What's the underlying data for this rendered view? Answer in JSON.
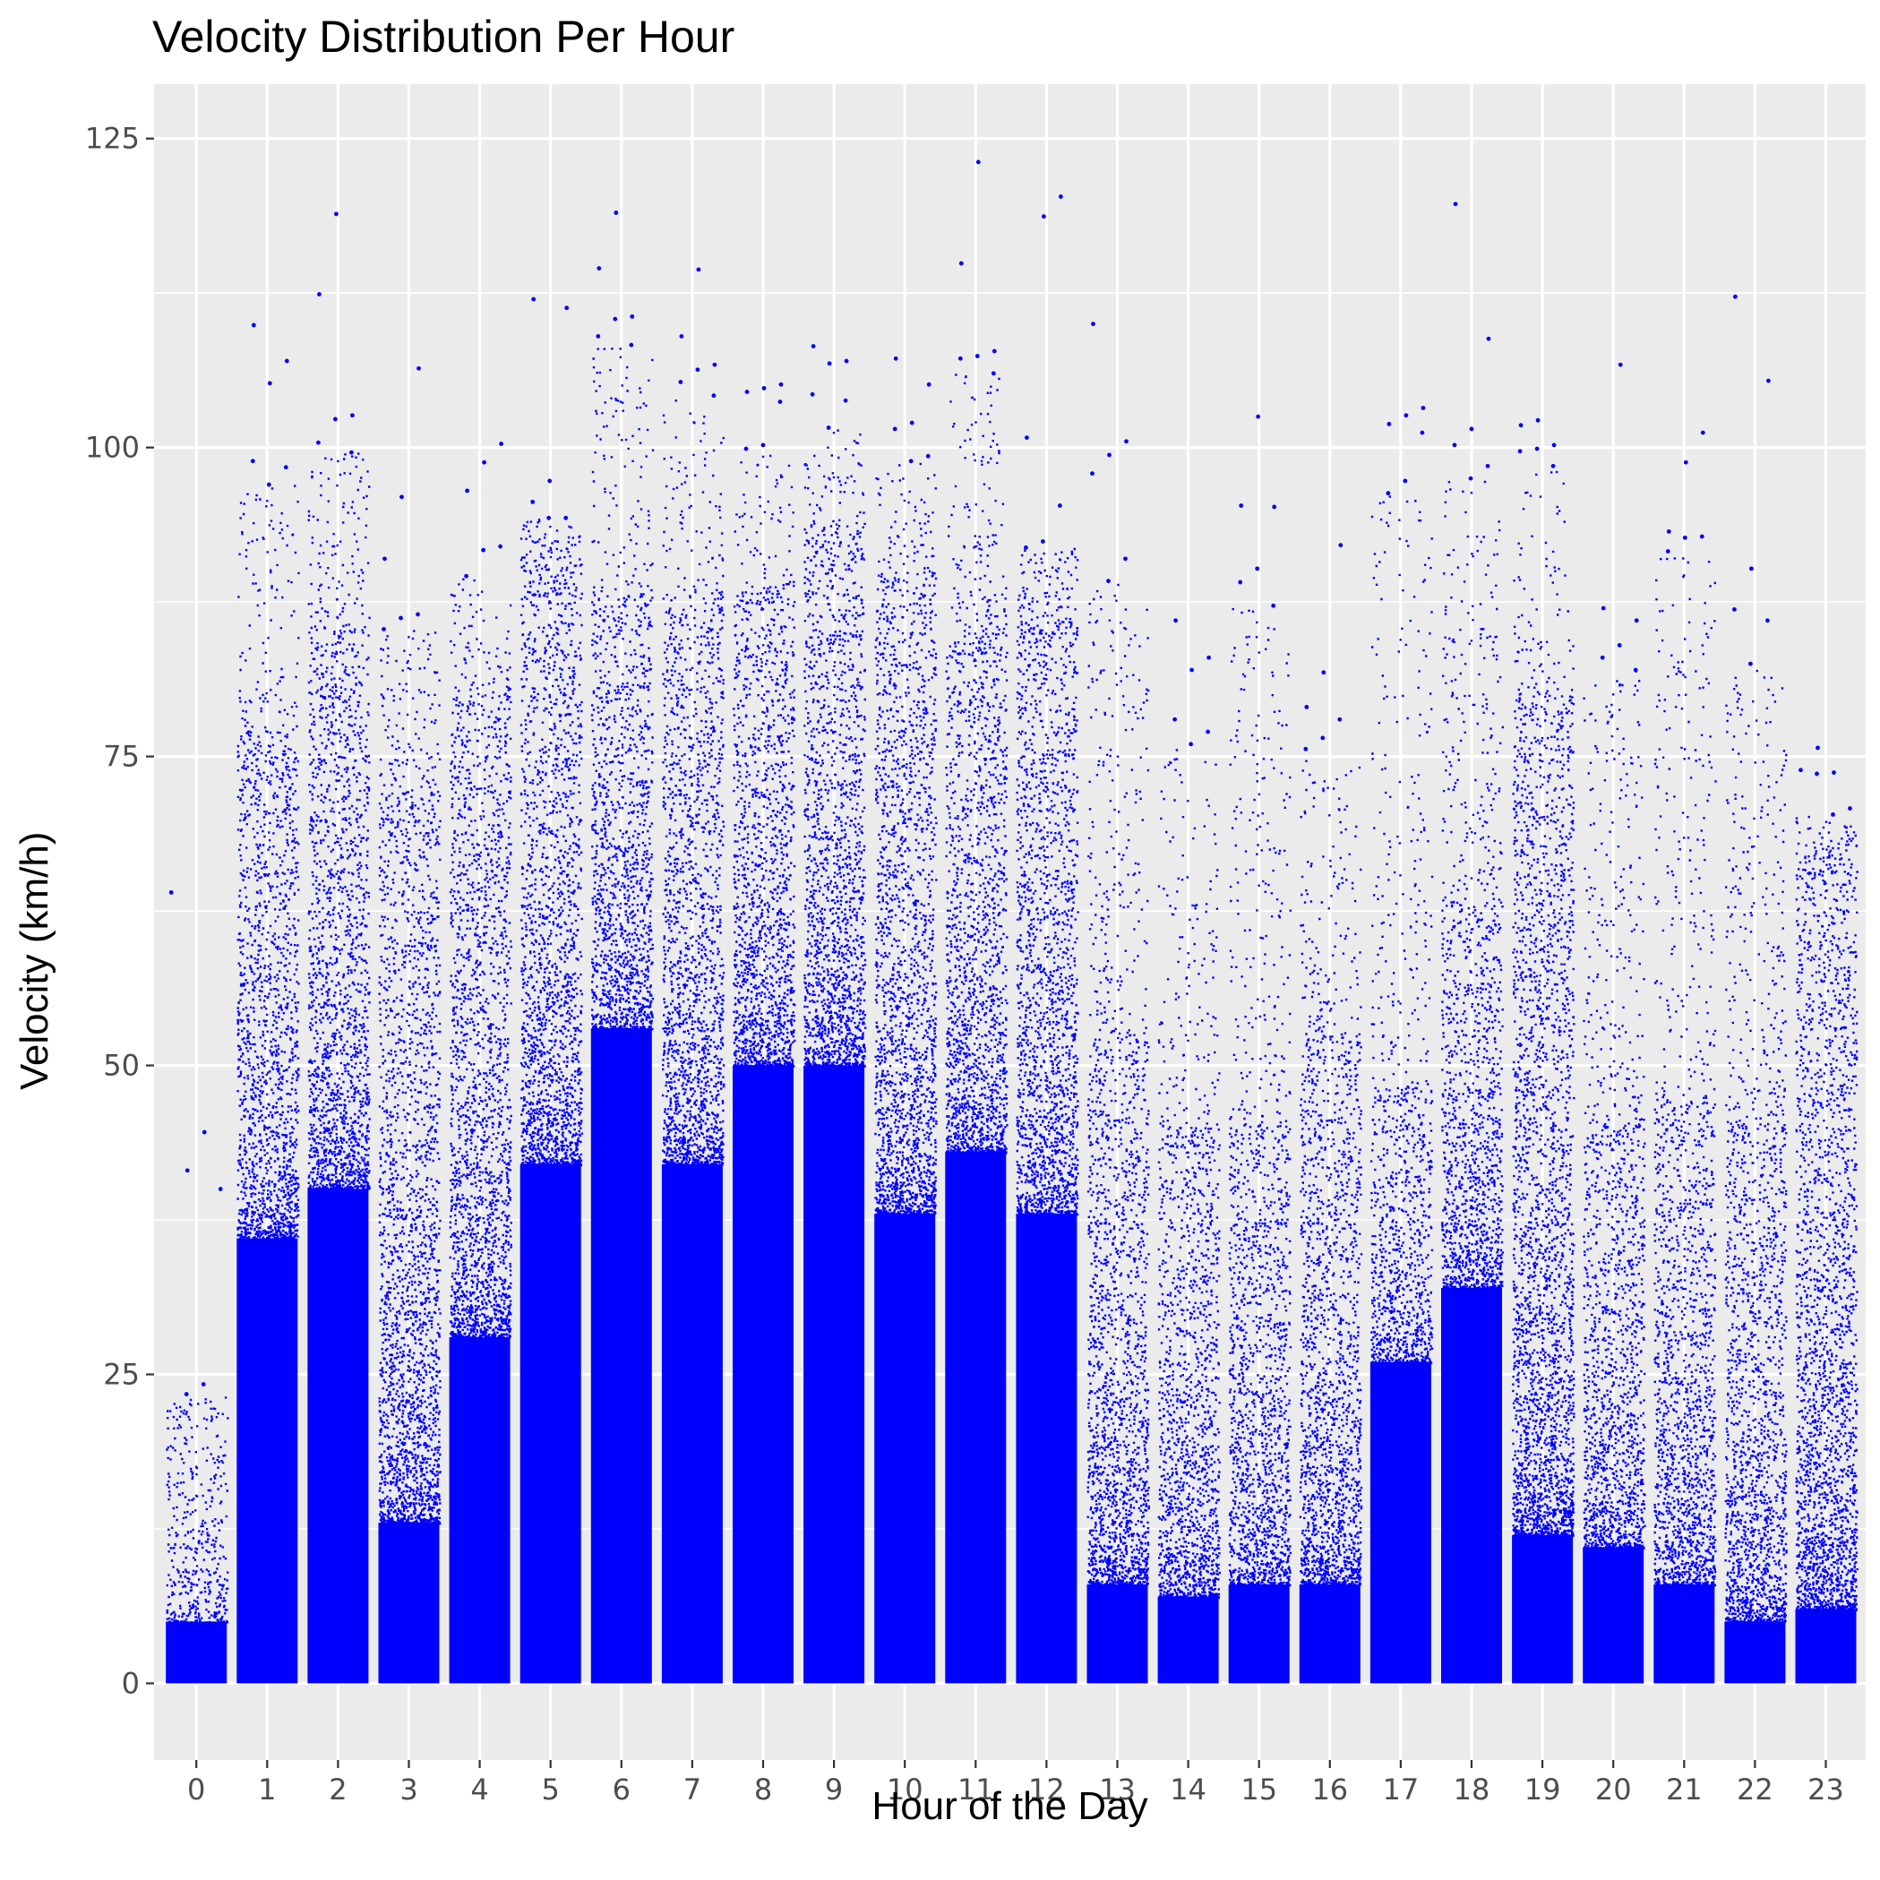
{
  "chart_data": {
    "type": "scatter",
    "title": "Velocity Distribution Per Hour",
    "xlabel": "Hour of the Day",
    "ylabel": "Velocity (km/h)",
    "categories": [
      "0",
      "1",
      "2",
      "3",
      "4",
      "5",
      "6",
      "7",
      "8",
      "9",
      "10",
      "11",
      "12",
      "13",
      "14",
      "15",
      "16",
      "17",
      "18",
      "19",
      "20",
      "21",
      "22",
      "23"
    ],
    "yticks": [
      0,
      25,
      50,
      75,
      100,
      125
    ],
    "ylim": [
      -6.2,
      129.4
    ],
    "grid": true,
    "legend": "none",
    "point_color": "#0000ff",
    "panel_color": "#ebebeb",
    "grid_color": "#ffffff",
    "series": [
      {
        "hour": 0,
        "dense_max": 5,
        "mid_max": 11,
        "top_outliers": [
          64,
          44.6,
          41.5,
          40,
          24.2,
          23.4
        ]
      },
      {
        "hour": 1,
        "dense_max": 36,
        "mid_max": 77,
        "top_outliers": [
          109.9,
          107,
          105.2,
          98.9,
          98.4,
          97
        ]
      },
      {
        "hour": 2,
        "dense_max": 40,
        "mid_max": 85,
        "top_outliers": [
          118.9,
          112.4,
          102.6,
          102.3,
          100.4,
          99.6
        ]
      },
      {
        "hour": 3,
        "dense_max": 13,
        "mid_max": 72,
        "top_outliers": [
          106.4,
          96,
          91,
          86.5,
          86.2,
          85.3
        ]
      },
      {
        "hour": 4,
        "dense_max": 28,
        "mid_max": 80,
        "top_outliers": [
          100.3,
          98.8,
          96.5,
          92,
          91.7,
          89.6
        ]
      },
      {
        "hour": 5,
        "dense_max": 42,
        "mid_max": 90,
        "top_outliers": [
          112,
          111.3,
          97.3,
          95.6,
          94.3,
          94.3
        ]
      },
      {
        "hour": 6,
        "dense_max": 53,
        "mid_max": 88,
        "top_outliers": [
          119,
          114.5,
          110.6,
          110.4,
          109,
          108.3
        ]
      },
      {
        "hour": 7,
        "dense_max": 42,
        "mid_max": 87,
        "top_outliers": [
          114.4,
          109,
          106.7,
          106.3,
          105.3,
          104.2
        ]
      },
      {
        "hour": 8,
        "dense_max": 50,
        "mid_max": 89,
        "top_outliers": [
          105.1,
          104.8,
          104.5,
          103.7,
          100.2,
          99.9
        ]
      },
      {
        "hour": 9,
        "dense_max": 50,
        "mid_max": 94,
        "top_outliers": [
          108.2,
          107,
          106.8,
          104.3,
          103.8,
          101.6
        ]
      },
      {
        "hour": 10,
        "dense_max": 38,
        "mid_max": 90,
        "top_outliers": [
          107.2,
          105.1,
          102,
          101.5,
          99.3,
          98.9
        ]
      },
      {
        "hour": 11,
        "dense_max": 43,
        "mid_max": 85,
        "top_outliers": [
          123.1,
          114.9,
          107.8,
          107.4,
          107.2,
          106
        ]
      },
      {
        "hour": 12,
        "dense_max": 38,
        "mid_max": 85,
        "top_outliers": [
          120.3,
          118.7,
          100.8,
          95.3,
          92.4,
          91.9
        ]
      },
      {
        "hour": 13,
        "dense_max": 8,
        "mid_max": 52,
        "top_outliers": [
          110,
          100.5,
          99.4,
          97.9,
          91,
          89.2
        ]
      },
      {
        "hour": 14,
        "dense_max": 7,
        "mid_max": 45,
        "top_outliers": [
          86,
          83,
          82,
          78,
          77,
          76
        ]
      },
      {
        "hour": 15,
        "dense_max": 8,
        "mid_max": 45,
        "top_outliers": [
          102.5,
          95.3,
          95.2,
          90.2,
          89.1,
          87.2
        ]
      },
      {
        "hour": 16,
        "dense_max": 8,
        "mid_max": 52,
        "top_outliers": [
          92.1,
          81.8,
          79,
          78,
          76.5,
          75.6
        ]
      },
      {
        "hour": 17,
        "dense_max": 26,
        "mid_max": 48,
        "top_outliers": [
          103.2,
          102.6,
          101.9,
          101.2,
          97.3,
          96.3
        ]
      },
      {
        "hour": 18,
        "dense_max": 32,
        "mid_max": 63,
        "top_outliers": [
          119.7,
          108.8,
          101.5,
          100.2,
          98.5,
          97.5
        ]
      },
      {
        "hour": 19,
        "dense_max": 12,
        "mid_max": 80,
        "top_outliers": [
          102.2,
          101.8,
          100.2,
          99.9,
          99.7,
          98.5
        ]
      },
      {
        "hour": 20,
        "dense_max": 11,
        "mid_max": 45,
        "top_outliers": [
          106.7,
          87,
          86,
          84,
          83,
          82
        ]
      },
      {
        "hour": 21,
        "dense_max": 8,
        "mid_max": 47,
        "top_outliers": [
          101.2,
          98.8,
          93.2,
          92.8,
          92.7,
          91.6
        ]
      },
      {
        "hour": 22,
        "dense_max": 5,
        "mid_max": 45,
        "top_outliers": [
          112.2,
          105.4,
          90.2,
          86.9,
          86,
          82.5
        ]
      },
      {
        "hour": 23,
        "dense_max": 6,
        "mid_max": 68,
        "top_outliers": [
          75.7,
          73.9,
          73.7,
          73.6,
          70.8,
          70.3
        ]
      }
    ]
  }
}
